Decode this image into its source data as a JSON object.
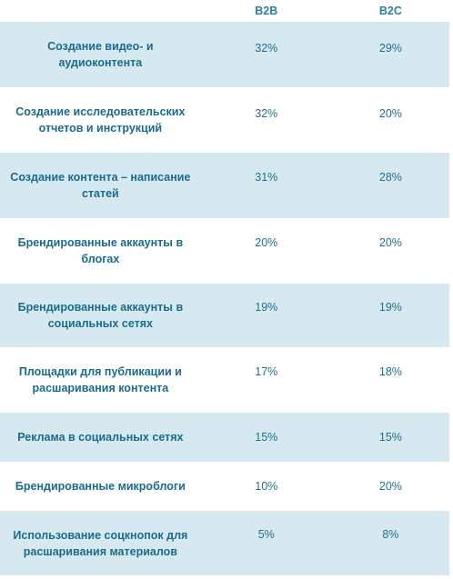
{
  "headers": {
    "label": "",
    "b2b": "B2B",
    "b2c": "B2C"
  },
  "rows": [
    {
      "label": "Создание видео- и аудиоконтента",
      "b2b": "32%",
      "b2c": "29%"
    },
    {
      "label": "Создание исследовательских отчетов и инструкций",
      "b2b": "32%",
      "b2c": "20%"
    },
    {
      "label": "Создание контента – написание статей",
      "b2b": "31%",
      "b2c": "28%"
    },
    {
      "label": "Брендированные аккаунты в блогах",
      "b2b": "20%",
      "b2c": "20%"
    },
    {
      "label": "Брендированные аккаунты в социальных сетях",
      "b2b": "19%",
      "b2c": "19%"
    },
    {
      "label": "Площадки для публикации и расшаривания контента",
      "b2b": "17%",
      "b2c": "18%"
    },
    {
      "label": "Реклама в социальных сетях",
      "b2b": "15%",
      "b2c": "15%"
    },
    {
      "label": "Брендированные микроблоги",
      "b2b": "10%",
      "b2c": "20%"
    },
    {
      "label": "Использование соцкнопок для расшаривания материалов",
      "b2b": "5%",
      "b2c": "8%"
    }
  ],
  "colors": {
    "shaded_row": "#d6e9f1",
    "text": "#1a6b8c"
  }
}
